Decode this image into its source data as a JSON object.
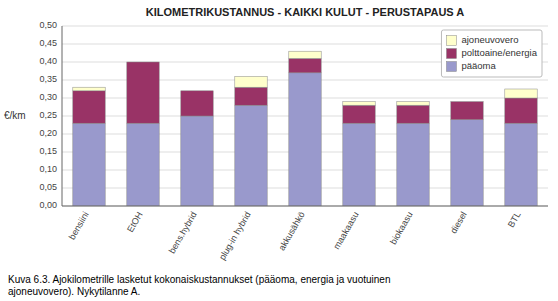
{
  "chart_data": {
    "type": "bar",
    "stacked": true,
    "title": "KILOMETRIKUSTANNUS - KAIKKI KULUT - PERUSTAPAUS A",
    "y_label": "€/km",
    "annotations": [
      "Kuva 6.3. Ajokilometrille lasketut kokonaiskustannukset (pääoma, energia ja vuotuinen\najoneuvovero). Nykytilanne A."
    ],
    "categories": [
      "bensiini",
      "EtOH",
      "bens.hybrid",
      "plug-in hybrid",
      "akkusähkö",
      "maakaasu",
      "biokaasu",
      "diesel",
      "BTL"
    ],
    "series": [
      {
        "name": "pääoma",
        "color": "#9999CC",
        "values": [
          0.23,
          0.23,
          0.25,
          0.28,
          0.37,
          0.23,
          0.23,
          0.24,
          0.23
        ]
      },
      {
        "name": "polttoaine/energia",
        "color": "#993366",
        "values": [
          0.09,
          0.17,
          0.07,
          0.05,
          0.04,
          0.05,
          0.05,
          0.05,
          0.07
        ]
      },
      {
        "name": "ajoneuvovero",
        "color": "#FFFFCC",
        "values": [
          0.01,
          0.0,
          0.0,
          0.03,
          0.02,
          0.01,
          0.01,
          0.0,
          0.025
        ]
      }
    ],
    "ylim": [
      0,
      0.5
    ],
    "yticks": [
      {
        "value": 0.0,
        "label": "0,00"
      },
      {
        "value": 0.05,
        "label": "0,05"
      },
      {
        "value": 0.1,
        "label": "0,10"
      },
      {
        "value": 0.15,
        "label": "0,15"
      },
      {
        "value": 0.2,
        "label": "0,20"
      },
      {
        "value": 0.25,
        "label": "0,25"
      },
      {
        "value": 0.3,
        "label": "0,30"
      },
      {
        "value": 0.35,
        "label": "0,35"
      },
      {
        "value": 0.4,
        "label": "0,40"
      },
      {
        "value": 0.45,
        "label": "0,45"
      },
      {
        "value": 0.5,
        "label": "0,50"
      }
    ],
    "grid": true,
    "legend": "upper right"
  }
}
